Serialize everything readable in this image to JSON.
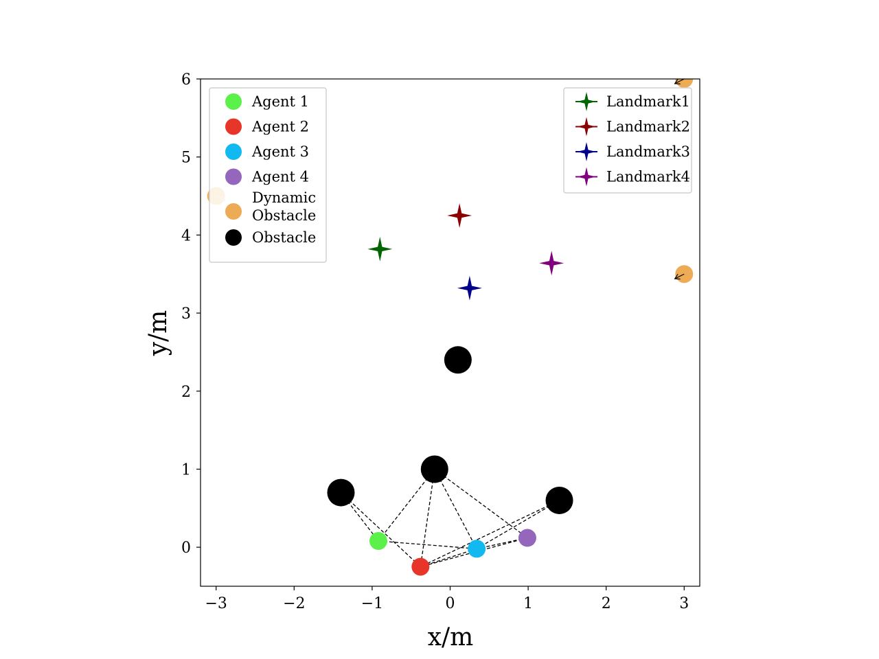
{
  "chart_data": {
    "type": "scatter",
    "xlabel": "x/m",
    "ylabel": "y/m",
    "xlim": [
      -3.2,
      3.2
    ],
    "ylim": [
      -0.5,
      6.0
    ],
    "xticks": [
      -3,
      -2,
      -1,
      0,
      1,
      2,
      3
    ],
    "xtick_labels": [
      "−3",
      "−2",
      "−1",
      "0",
      "1",
      "2",
      "3"
    ],
    "yticks": [
      0,
      1,
      2,
      3,
      4,
      5,
      6
    ],
    "ytick_labels": [
      "0",
      "1",
      "2",
      "3",
      "4",
      "5",
      "6"
    ],
    "grid": false,
    "agents": [
      {
        "name": "Agent 1",
        "x": -0.92,
        "y": 0.08,
        "color": "#5cf14a"
      },
      {
        "name": "Agent 2",
        "x": -0.38,
        "y": -0.25,
        "color": "#e8352a"
      },
      {
        "name": "Agent 3",
        "x": 0.34,
        "y": -0.02,
        "color": "#12b9f0"
      },
      {
        "name": "Agent 4",
        "x": 0.99,
        "y": 0.12,
        "color": "#9467bd"
      }
    ],
    "dynamic_obstacles": {
      "name": "Dynamic\nObstacle",
      "color": "#edab55",
      "points": [
        {
          "x": -3.0,
          "y": 4.5,
          "dx": 0.12,
          "dy": -0.06
        },
        {
          "x": 3.0,
          "y": 3.5,
          "dx": -0.12,
          "dy": -0.06
        },
        {
          "x": 3.0,
          "y": 6.0,
          "dx": -0.12,
          "dy": -0.06
        }
      ]
    },
    "obstacles": {
      "name": "Obstacle",
      "color": "#000000",
      "points": [
        {
          "x": 0.1,
          "y": 2.4
        },
        {
          "x": -0.2,
          "y": 1.0
        },
        {
          "x": -1.4,
          "y": 0.7
        },
        {
          "x": 1.4,
          "y": 0.6
        }
      ]
    },
    "landmarks": [
      {
        "name": "Landmark1",
        "x": -0.9,
        "y": 3.82,
        "color": "#006400"
      },
      {
        "name": "Landmark2",
        "x": 0.12,
        "y": 4.25,
        "color": "#8b0000"
      },
      {
        "name": "Landmark3",
        "x": 0.25,
        "y": 3.32,
        "color": "#00008b"
      },
      {
        "name": "Landmark4",
        "x": 1.3,
        "y": 3.64,
        "color": "#800080"
      }
    ],
    "links": [
      {
        "from": "obstacle:2",
        "to": "agent:0"
      },
      {
        "from": "obstacle:2",
        "to": "agent:1"
      },
      {
        "from": "obstacle:1",
        "to": "agent:0"
      },
      {
        "from": "obstacle:1",
        "to": "agent:1"
      },
      {
        "from": "obstacle:1",
        "to": "agent:2"
      },
      {
        "from": "obstacle:1",
        "to": "agent:3"
      },
      {
        "from": "obstacle:3",
        "to": "agent:1"
      },
      {
        "from": "obstacle:3",
        "to": "agent:2"
      },
      {
        "from": "agent:0",
        "to": "agent:2"
      },
      {
        "from": "agent:3",
        "to": "agent:1"
      },
      {
        "from": "agent:2",
        "to": "agent:1"
      },
      {
        "from": "agent:3",
        "to": "agent:2"
      }
    ],
    "legend_left_location": "upper left",
    "legend_right_location": "upper right"
  }
}
